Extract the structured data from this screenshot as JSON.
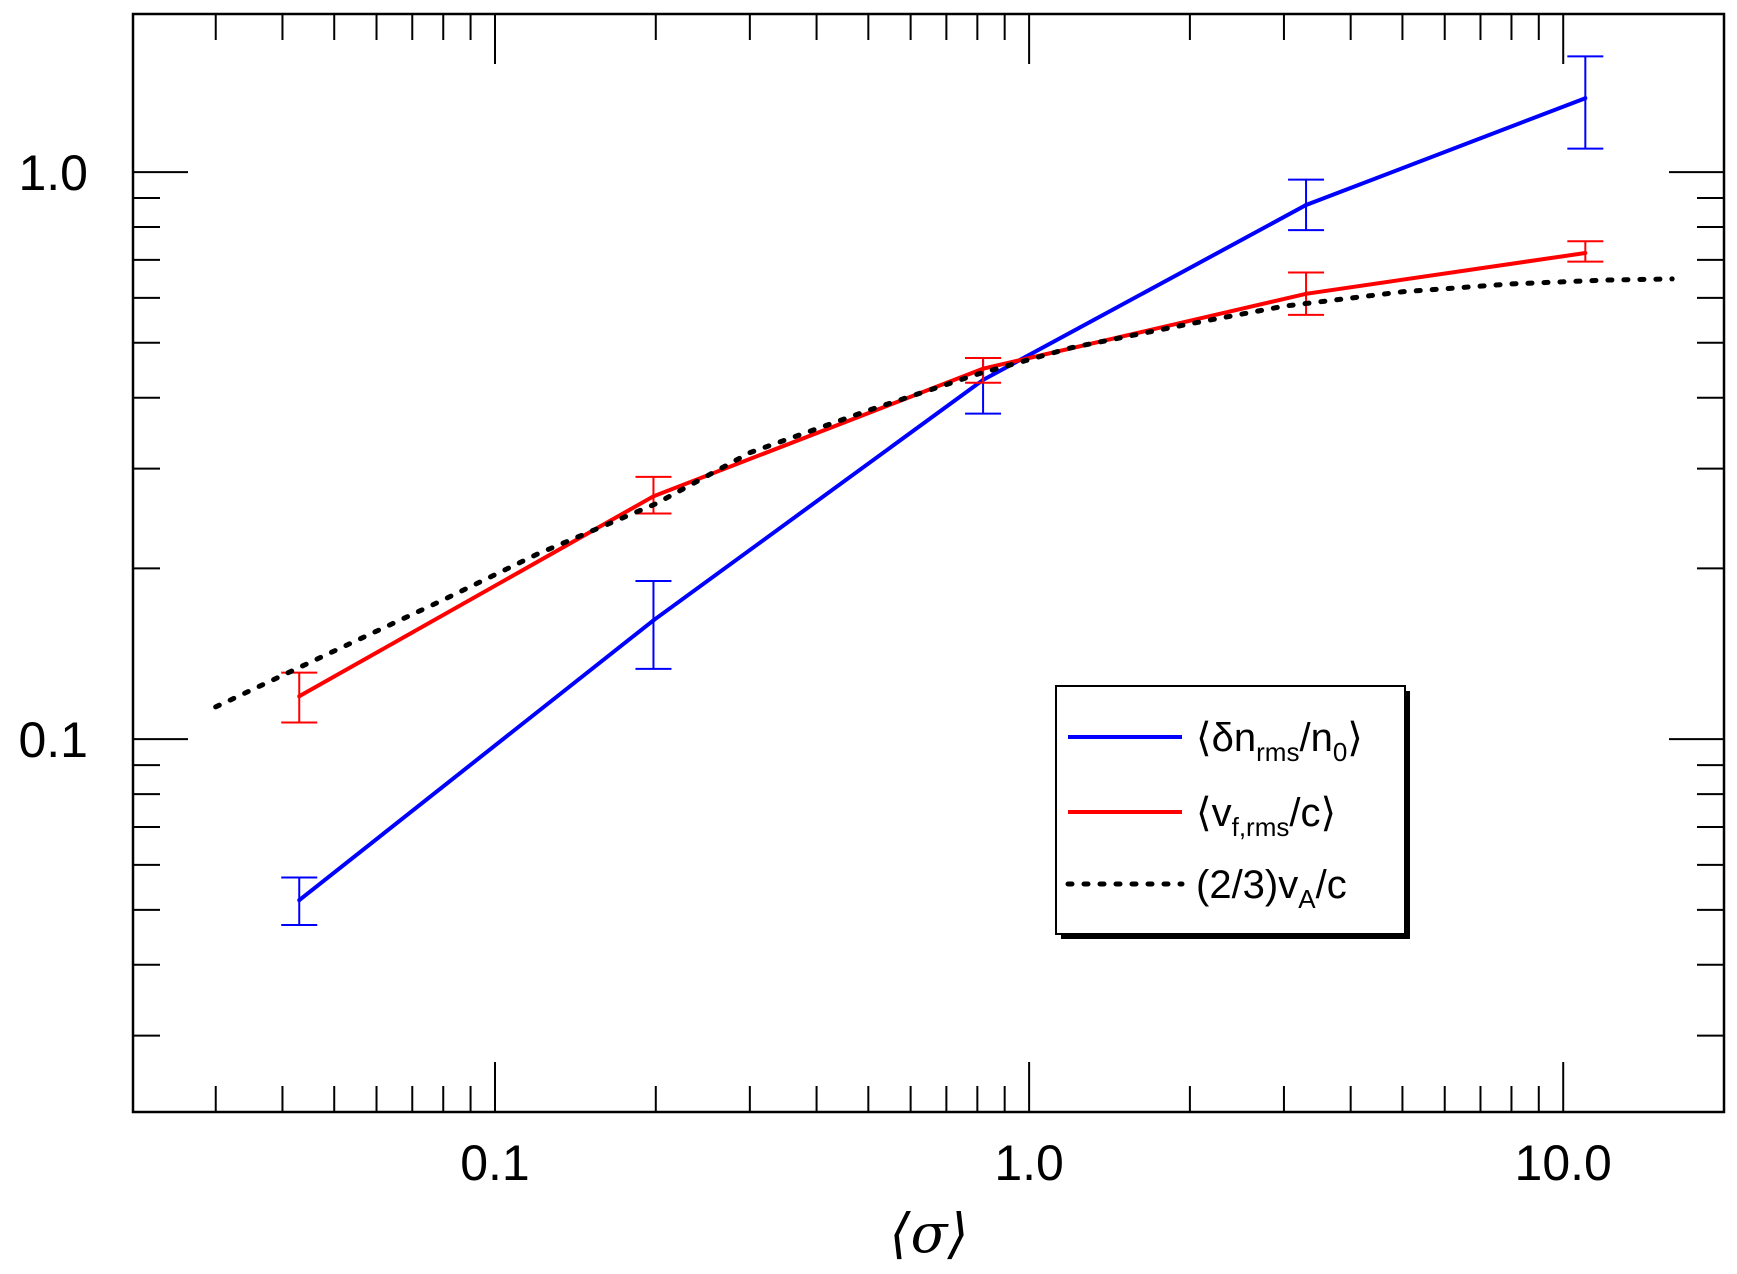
{
  "chart_data": {
    "type": "line",
    "x_scale": "log",
    "y_scale": "log",
    "xlabel": "⟨σ⟩",
    "ylabel": "",
    "xlim": [
      0.021,
      20.0
    ],
    "ylim": [
      0.022,
      1.9
    ],
    "x_tick_labels": [
      {
        "value": 0.1,
        "label": "0.1"
      },
      {
        "value": 1.0,
        "label": "1.0"
      },
      {
        "value": 10.0,
        "label": "10.0"
      }
    ],
    "y_tick_labels": [
      {
        "value": 0.1,
        "label": "0.1"
      },
      {
        "value": 1.0,
        "label": "1.0"
      }
    ],
    "grid": false,
    "legend_position": "lower-right",
    "series": [
      {
        "name": "⟨δn_rms/n_0⟩",
        "color": "#0000ff",
        "style": "solid",
        "x": [
          0.043,
          0.198,
          0.82,
          3.3,
          11.0
        ],
        "y": [
          0.052,
          0.162,
          0.43,
          0.875,
          1.35
        ],
        "yerr_low": [
          0.047,
          0.133,
          0.375,
          0.79,
          1.1
        ],
        "yerr_high": [
          0.057,
          0.19,
          0.47,
          0.97,
          1.6
        ]
      },
      {
        "name": "⟨v_f,rms/c⟩",
        "color": "#ff0000",
        "style": "solid",
        "x": [
          0.043,
          0.198,
          0.82,
          3.3,
          11.0
        ],
        "y": [
          0.119,
          0.268,
          0.45,
          0.61,
          0.72
        ],
        "yerr_low": [
          0.107,
          0.25,
          0.425,
          0.56,
          0.695
        ],
        "yerr_high": [
          0.131,
          0.29,
          0.47,
          0.665,
          0.755
        ]
      },
      {
        "name": "(2/3)v_A/c",
        "color": "#000000",
        "style": "dotted",
        "x": [
          0.03,
          0.05,
          0.08,
          0.12,
          0.2,
          0.3,
          0.5,
          0.8,
          1.2,
          2.0,
          3.0,
          5.0,
          8.0,
          12.0,
          16.0
        ],
        "y": [
          0.114,
          0.143,
          0.176,
          0.212,
          0.26,
          0.32,
          0.38,
          0.44,
          0.49,
          0.54,
          0.58,
          0.615,
          0.635,
          0.645,
          0.648
        ]
      }
    ],
    "legend": [
      {
        "main": "⟨δn",
        "sub": "rms",
        "mid": "/n",
        "sub2": "0",
        "end": "⟩"
      },
      {
        "main": "⟨v",
        "sub": "f,rms",
        "mid": "/c⟩",
        "sub2": "",
        "end": ""
      },
      {
        "main": "(2/3)v",
        "sub": "A",
        "mid": "/c",
        "sub2": "",
        "end": ""
      }
    ]
  }
}
